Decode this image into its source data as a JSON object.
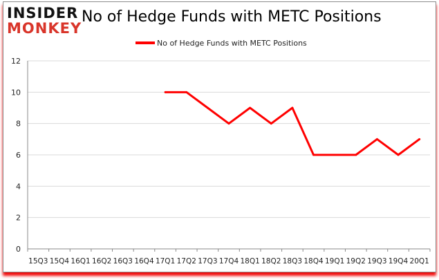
{
  "logo": {
    "line1": "INSIDER",
    "line2": "MONKEY"
  },
  "chart_data": {
    "type": "line",
    "title": "No of Hedge Funds with METC Positions",
    "categories": [
      "15Q3",
      "15Q4",
      "16Q1",
      "16Q2",
      "16Q3",
      "16Q4",
      "17Q1",
      "17Q2",
      "17Q3",
      "17Q4",
      "18Q1",
      "18Q2",
      "18Q3",
      "18Q4",
      "19Q1",
      "19Q2",
      "19Q3",
      "19Q4",
      "20Q1"
    ],
    "series": [
      {
        "name": "No of Hedge Funds with METC Positions",
        "color": "#ff0000",
        "values": [
          null,
          null,
          null,
          null,
          null,
          null,
          10,
          10,
          9,
          8,
          9,
          8,
          9,
          6,
          6,
          6,
          7,
          6,
          7
        ]
      }
    ],
    "ylim": [
      0,
      12
    ],
    "yticks": [
      0,
      2,
      4,
      6,
      8,
      10,
      12
    ],
    "grid": true,
    "legend": "top"
  }
}
